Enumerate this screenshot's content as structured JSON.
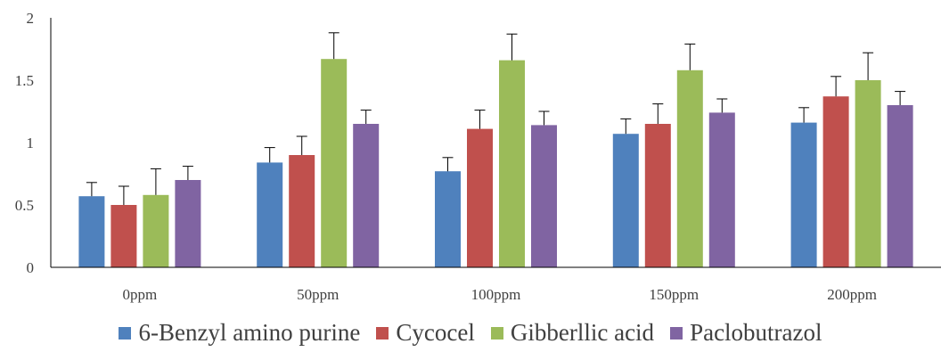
{
  "chart_data": {
    "type": "bar",
    "title": "",
    "xlabel": "",
    "ylabel": "",
    "ylim": [
      0,
      2
    ],
    "yticks": [
      0,
      0.5,
      1,
      1.5,
      2
    ],
    "ytick_labels": [
      "0",
      "0.5",
      "1",
      "1.5",
      "2"
    ],
    "grid": false,
    "legend_position": "bottom",
    "error_bars": true,
    "categories": [
      "0ppm",
      "50ppm",
      "100ppm",
      "150ppm",
      "200ppm"
    ],
    "series": [
      {
        "name": "6-Benzyl amino purine",
        "color": "#4f81bd",
        "values": [
          0.57,
          0.84,
          0.77,
          1.07,
          1.16
        ],
        "errors": [
          0.11,
          0.12,
          0.11,
          0.12,
          0.12
        ]
      },
      {
        "name": "Cycocel",
        "color": "#c0504d",
        "values": [
          0.5,
          0.9,
          1.11,
          1.15,
          1.37
        ],
        "errors": [
          0.15,
          0.15,
          0.15,
          0.16,
          0.16
        ]
      },
      {
        "name": "Gibberllic acid",
        "color": "#9bbb59",
        "values": [
          0.58,
          1.67,
          1.66,
          1.58,
          1.5
        ],
        "errors": [
          0.21,
          0.21,
          0.21,
          0.21,
          0.22
        ]
      },
      {
        "name": "Paclobutrazol",
        "color": "#8064a2",
        "values": [
          0.7,
          1.15,
          1.14,
          1.24,
          1.3
        ],
        "errors": [
          0.11,
          0.11,
          0.11,
          0.11,
          0.11
        ]
      }
    ]
  }
}
